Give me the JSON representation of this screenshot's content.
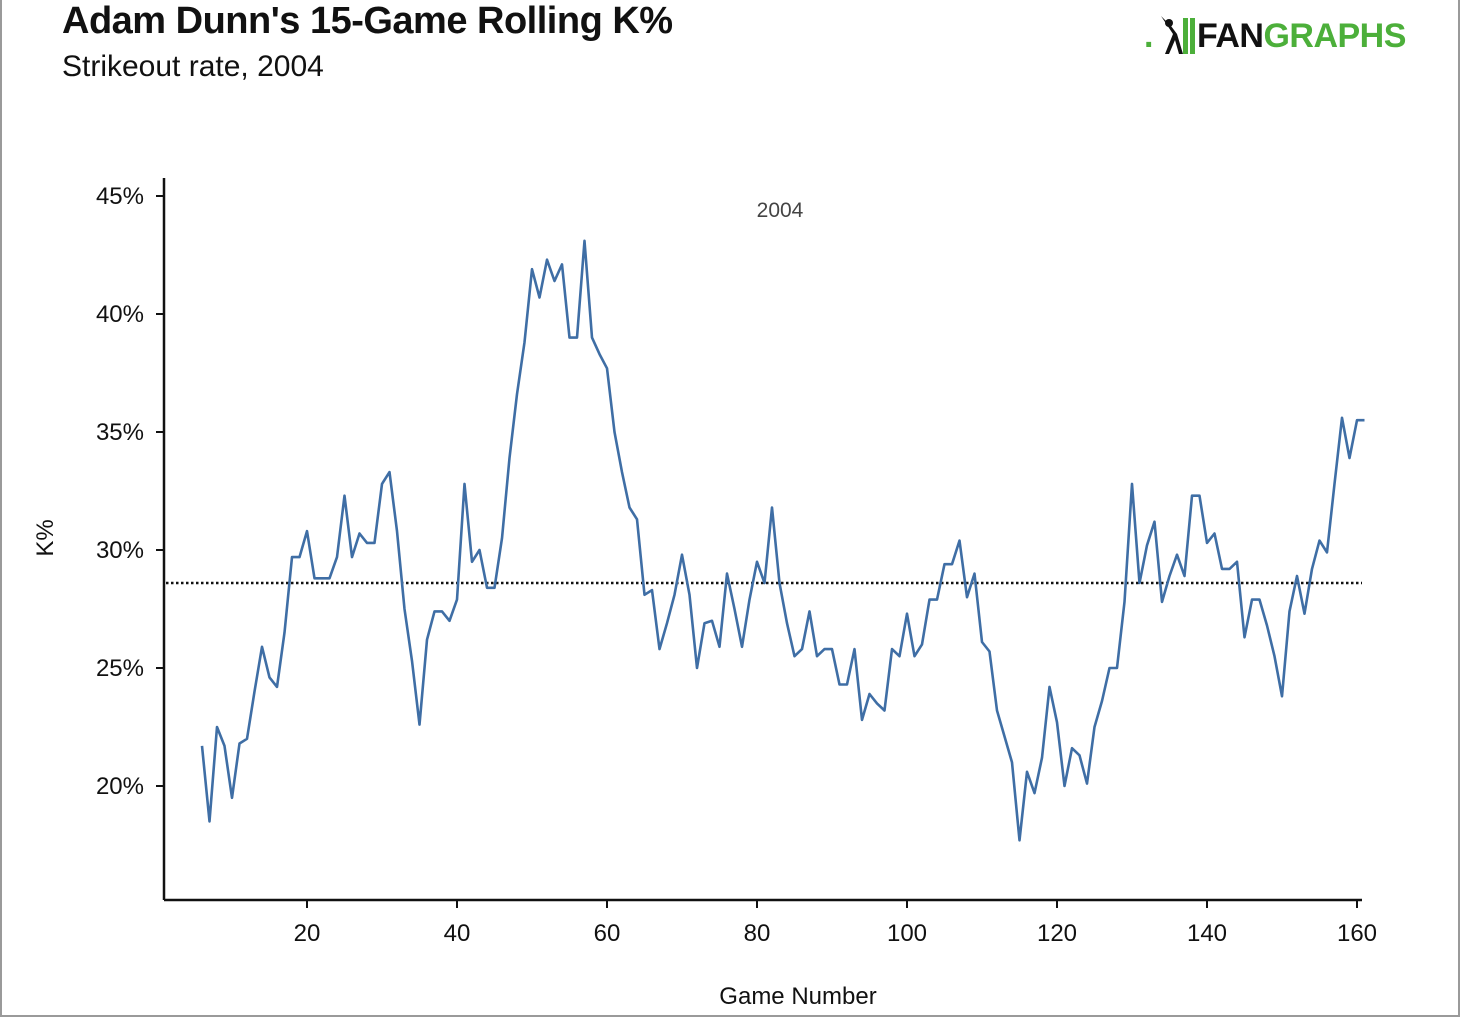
{
  "header": {
    "title": "Adam Dunn's 15-Game Rolling K%",
    "subtitle": "Strikeout rate, 2004"
  },
  "logo": {
    "dot": ".",
    "fan": "FAN",
    "graphs": "GRAPHS",
    "accent_color": "#4caf3a",
    "icon": "batter-silhouette-icon"
  },
  "chart_data": {
    "type": "line",
    "title": "Adam Dunn's 15-Game Rolling K%",
    "subtitle": "Strikeout rate, 2004",
    "annotation": "2004",
    "xlabel": "Game Number",
    "ylabel": "K%",
    "xlim": [
      0,
      160
    ],
    "ylim": [
      15,
      45
    ],
    "xticks": [
      20,
      40,
      60,
      80,
      100,
      120,
      140,
      160
    ],
    "yticks": [
      20,
      25,
      30,
      35,
      40,
      45
    ],
    "ytick_labels": [
      "20%",
      "25%",
      "30%",
      "35%",
      "40%",
      "45%"
    ],
    "reference_line": {
      "value": 28.6,
      "style": "dotted",
      "color": "#111111"
    },
    "series": [
      {
        "name": "15-Game Rolling K%",
        "color": "#3f6ea5",
        "x": [
          6,
          7,
          8,
          9,
          10,
          11,
          12,
          13,
          14,
          15,
          16,
          17,
          18,
          19,
          20,
          21,
          22,
          23,
          24,
          25,
          26,
          27,
          28,
          29,
          30,
          31,
          32,
          33,
          34,
          35,
          36,
          37,
          38,
          39,
          40,
          41,
          42,
          43,
          44,
          45,
          46,
          47,
          48,
          49,
          50,
          51,
          52,
          53,
          54,
          55,
          56,
          57,
          58,
          59,
          60,
          61,
          62,
          63,
          64,
          65,
          66,
          67,
          68,
          69,
          70,
          71,
          72,
          73,
          74,
          75,
          76,
          77,
          78,
          79,
          80,
          81,
          82,
          83,
          84,
          85,
          86,
          87,
          88,
          89,
          90,
          91,
          92,
          93,
          94,
          95,
          96,
          97,
          98,
          99,
          100,
          101,
          102,
          103,
          104,
          105,
          106,
          107,
          108,
          109,
          110,
          111,
          112,
          113,
          114,
          115,
          116,
          117,
          118,
          119,
          120,
          121,
          122,
          123,
          124,
          125,
          126,
          127,
          128,
          129,
          130,
          131,
          132,
          133,
          134,
          135,
          136,
          137,
          138,
          139,
          140,
          141,
          142,
          143,
          144,
          145,
          146,
          147,
          148,
          149,
          150,
          151,
          152,
          153,
          154,
          155,
          156,
          157,
          158,
          159,
          160,
          161
        ],
        "y": [
          21.7,
          18.5,
          22.5,
          21.7,
          19.5,
          21.8,
          22.0,
          24.0,
          25.9,
          24.6,
          24.2,
          26.5,
          29.7,
          29.7,
          30.8,
          28.8,
          28.8,
          28.8,
          29.7,
          32.3,
          29.7,
          30.7,
          30.3,
          30.3,
          32.8,
          33.3,
          30.8,
          27.5,
          25.3,
          22.6,
          26.2,
          27.4,
          27.4,
          27.0,
          27.9,
          32.8,
          29.5,
          30.0,
          28.4,
          28.4,
          30.5,
          33.9,
          36.6,
          38.8,
          41.9,
          40.7,
          42.3,
          41.4,
          42.1,
          39.0,
          39.0,
          43.1,
          39.0,
          38.3,
          37.7,
          35.0,
          33.3,
          31.8,
          31.3,
          28.1,
          28.3,
          25.8,
          26.9,
          28.1,
          29.8,
          28.1,
          25.0,
          26.9,
          27.0,
          25.9,
          29.0,
          27.5,
          25.9,
          27.9,
          29.5,
          28.6,
          31.8,
          28.6,
          26.9,
          25.5,
          25.8,
          27.4,
          25.5,
          25.8,
          25.8,
          24.3,
          24.3,
          25.8,
          22.8,
          23.9,
          23.5,
          23.2,
          25.8,
          25.5,
          27.3,
          25.5,
          26.0,
          27.9,
          27.9,
          29.4,
          29.4,
          30.4,
          28.0,
          29.0,
          26.1,
          25.7,
          23.2,
          22.1,
          21.0,
          17.7,
          20.6,
          19.7,
          21.2,
          24.2,
          22.7,
          20.0,
          21.6,
          21.3,
          20.1,
          22.5,
          23.6,
          25.0,
          25.0,
          27.8,
          32.8,
          28.6,
          30.2,
          31.2,
          27.8,
          28.9,
          29.8,
          28.9,
          32.3,
          32.3,
          30.3,
          30.7,
          29.2,
          29.2,
          29.5,
          26.3,
          27.9,
          27.9,
          26.8,
          25.5,
          23.8,
          27.4,
          28.9,
          27.3,
          29.2,
          30.4,
          29.9,
          32.8,
          35.6,
          33.9,
          35.5,
          35.5
        ]
      }
    ]
  }
}
